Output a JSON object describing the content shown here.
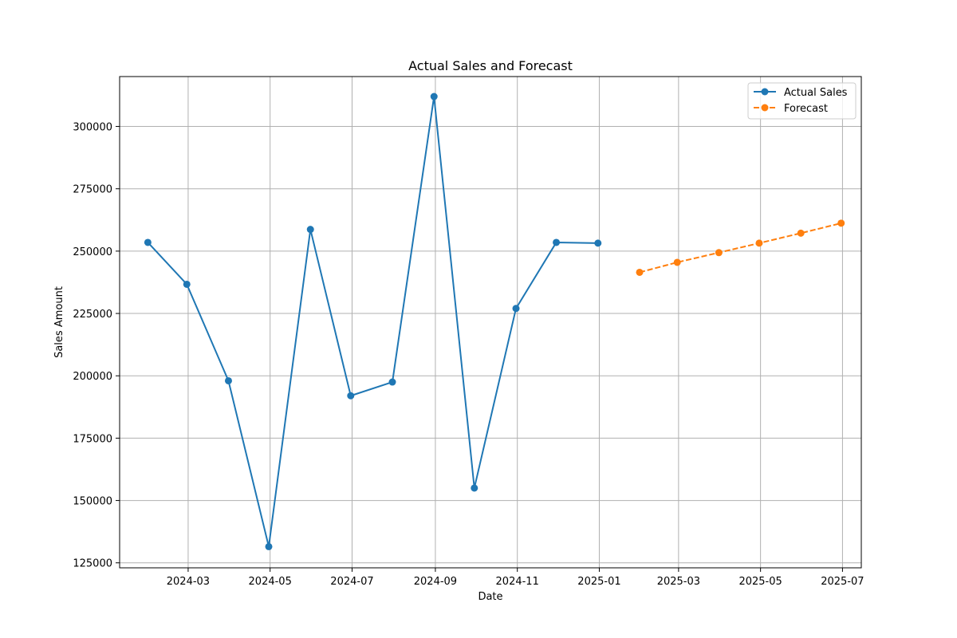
{
  "chart_data": {
    "type": "line",
    "title": "Actual Sales and Forecast",
    "xlabel": "Date",
    "ylabel": "Sales Amount",
    "xlim": [
      "2024-01-10",
      "2025-07-15"
    ],
    "ylim": [
      123000,
      320000
    ],
    "grid": true,
    "legend_position": "top-right",
    "x_ticks": [
      "2024-03-01",
      "2024-05-01",
      "2024-07-01",
      "2024-09-01",
      "2024-11-01",
      "2025-01-01",
      "2025-03-01",
      "2025-05-01",
      "2025-07-01"
    ],
    "x_tick_labels": [
      "2024-03",
      "2024-05",
      "2024-07",
      "2024-09",
      "2024-11",
      "2025-01",
      "2025-03",
      "2025-05",
      "2025-07"
    ],
    "y_ticks": [
      125000,
      150000,
      175000,
      200000,
      225000,
      250000,
      275000,
      300000
    ],
    "y_tick_labels": [
      "125000",
      "150000",
      "175000",
      "200000",
      "225000",
      "250000",
      "275000",
      "300000"
    ],
    "series": [
      {
        "name": "Actual Sales",
        "color": "#1f77b4",
        "line_style": "solid",
        "marker": "circle",
        "x": [
          "2024-01-31",
          "2024-02-29",
          "2024-03-31",
          "2024-04-30",
          "2024-05-31",
          "2024-06-30",
          "2024-07-31",
          "2024-08-31",
          "2024-09-30",
          "2024-10-31",
          "2024-11-30",
          "2024-12-31"
        ],
        "values": [
          253500,
          236700,
          198000,
          131500,
          258700,
          192000,
          197500,
          312000,
          155000,
          227000,
          253500,
          253200
        ]
      },
      {
        "name": "Forecast",
        "color": "#ff7f0e",
        "line_style": "dashed",
        "marker": "circle",
        "x": [
          "2025-01-31",
          "2025-02-28",
          "2025-03-31",
          "2025-04-30",
          "2025-05-31",
          "2025-06-30"
        ],
        "values": [
          241500,
          245500,
          249400,
          253200,
          257200,
          261200
        ]
      }
    ]
  }
}
